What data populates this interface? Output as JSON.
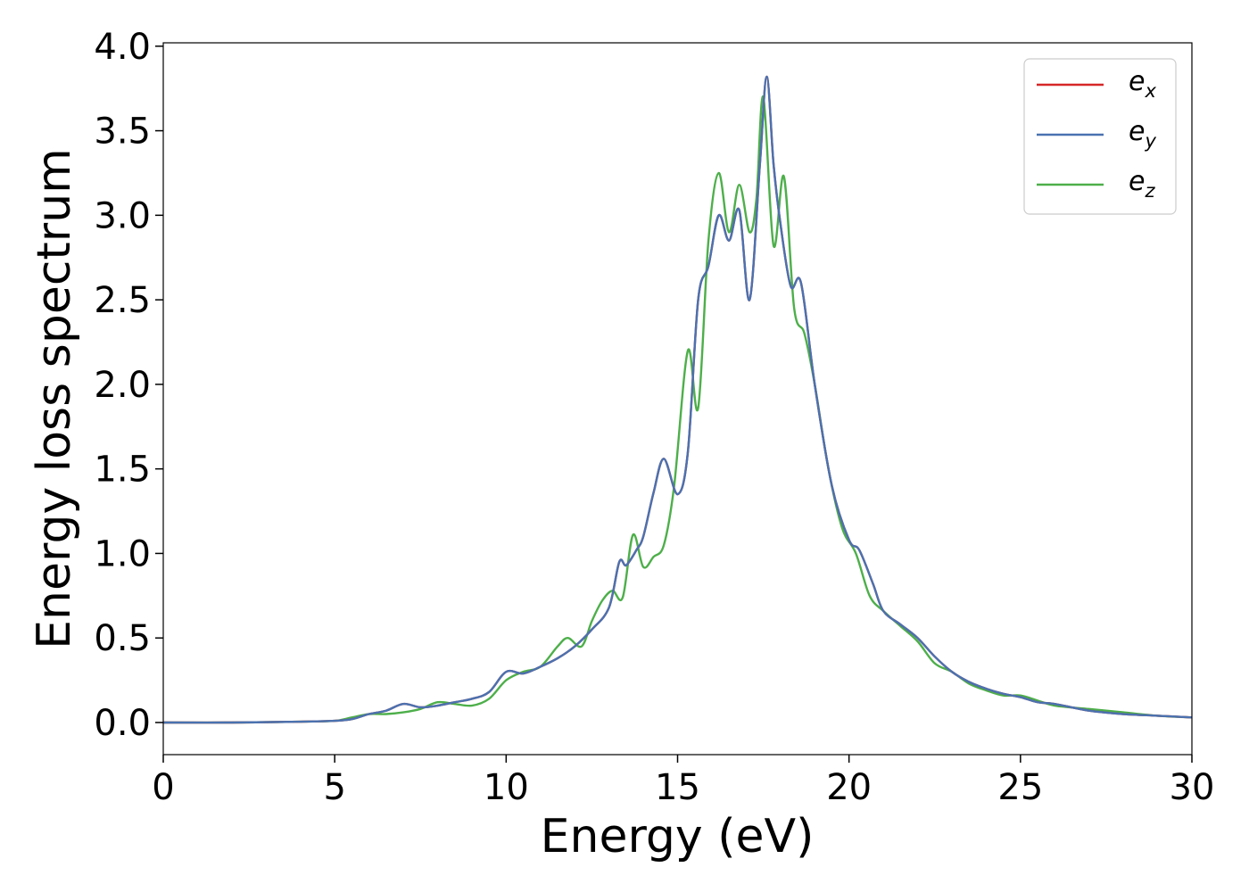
{
  "chart_data": {
    "type": "line",
    "title": "",
    "xlabel": "Energy (eV)",
    "ylabel": "Energy loss spectrum",
    "xlim": [
      0,
      30
    ],
    "ylim": [
      -0.19,
      4.02
    ],
    "xticks": [
      0,
      5,
      10,
      15,
      20,
      25,
      30
    ],
    "xtick_labels": [
      "0",
      "5",
      "10",
      "15",
      "20",
      "25",
      "30"
    ],
    "yticks": [
      0.0,
      0.5,
      1.0,
      1.5,
      2.0,
      2.5,
      3.0,
      3.5,
      4.0
    ],
    "ytick_labels": [
      "0.0",
      "0.5",
      "1.0",
      "1.5",
      "2.0",
      "2.5",
      "3.0",
      "3.5",
      "4.0"
    ],
    "grid": false,
    "legend_position": "top-right",
    "series": [
      {
        "name": "e",
        "subscript": "x",
        "color": "#d62728",
        "x": [
          0,
          2,
          4,
          5,
          5.5,
          6,
          6.5,
          7,
          7.5,
          8,
          8.5,
          9,
          9.5,
          10,
          10.5,
          11,
          11.5,
          12,
          12.5,
          13,
          13.3,
          13.5,
          13.8,
          14,
          14.3,
          14.6,
          15,
          15.3,
          15.6,
          15.9,
          16.2,
          16.5,
          16.8,
          17.1,
          17.4,
          17.6,
          17.8,
          18.0,
          18.3,
          18.6,
          19.0,
          19.5,
          20.0,
          20.3,
          20.7,
          21.0,
          21.5,
          22.0,
          22.5,
          23.0,
          23.5,
          24.0,
          24.5,
          25.0,
          25.5,
          26.0,
          27.0,
          28.0,
          29.0,
          30.0
        ],
        "y": [
          0.0,
          0.0,
          0.005,
          0.01,
          0.02,
          0.05,
          0.07,
          0.11,
          0.09,
          0.1,
          0.12,
          0.14,
          0.18,
          0.3,
          0.29,
          0.33,
          0.38,
          0.45,
          0.55,
          0.68,
          0.95,
          0.93,
          1.02,
          1.1,
          1.36,
          1.56,
          1.35,
          1.6,
          2.5,
          2.7,
          3.0,
          2.85,
          3.03,
          2.5,
          3.3,
          3.82,
          3.3,
          2.95,
          2.58,
          2.6,
          2.0,
          1.4,
          1.08,
          1.02,
          0.82,
          0.66,
          0.58,
          0.5,
          0.39,
          0.3,
          0.24,
          0.2,
          0.17,
          0.15,
          0.12,
          0.11,
          0.07,
          0.05,
          0.04,
          0.03
        ]
      },
      {
        "name": "e",
        "subscript": "y",
        "color": "#4a72b0",
        "x": [
          0,
          2,
          4,
          5,
          5.5,
          6,
          6.5,
          7,
          7.5,
          8,
          8.5,
          9,
          9.5,
          10,
          10.5,
          11,
          11.5,
          12,
          12.5,
          13,
          13.3,
          13.5,
          13.8,
          14,
          14.3,
          14.6,
          15,
          15.3,
          15.6,
          15.9,
          16.2,
          16.5,
          16.8,
          17.1,
          17.4,
          17.6,
          17.8,
          18.0,
          18.3,
          18.6,
          19.0,
          19.5,
          20.0,
          20.3,
          20.7,
          21.0,
          21.5,
          22.0,
          22.5,
          23.0,
          23.5,
          24.0,
          24.5,
          25.0,
          25.5,
          26.0,
          27.0,
          28.0,
          29.0,
          30.0
        ],
        "y": [
          0.0,
          0.0,
          0.005,
          0.01,
          0.02,
          0.05,
          0.07,
          0.11,
          0.09,
          0.1,
          0.12,
          0.14,
          0.18,
          0.3,
          0.29,
          0.33,
          0.38,
          0.45,
          0.55,
          0.68,
          0.95,
          0.93,
          1.02,
          1.1,
          1.36,
          1.56,
          1.35,
          1.6,
          2.5,
          2.7,
          3.0,
          2.85,
          3.03,
          2.5,
          3.3,
          3.82,
          3.3,
          2.95,
          2.58,
          2.6,
          2.0,
          1.4,
          1.08,
          1.02,
          0.82,
          0.66,
          0.58,
          0.5,
          0.39,
          0.3,
          0.24,
          0.2,
          0.17,
          0.15,
          0.12,
          0.11,
          0.07,
          0.05,
          0.04,
          0.03
        ]
      },
      {
        "name": "e",
        "subscript": "z",
        "color": "#4daf4a",
        "x": [
          0,
          2,
          4,
          5,
          5.5,
          6,
          6.5,
          7,
          7.5,
          8,
          8.5,
          9,
          9.5,
          10,
          10.5,
          11,
          11.5,
          11.8,
          12.2,
          12.5,
          12.8,
          13.1,
          13.4,
          13.7,
          14.0,
          14.3,
          14.6,
          14.9,
          15.3,
          15.6,
          15.9,
          16.2,
          16.5,
          16.8,
          17.1,
          17.3,
          17.5,
          17.8,
          18.1,
          18.4,
          18.7,
          19.0,
          19.4,
          19.8,
          20.2,
          20.6,
          21.0,
          21.5,
          22.0,
          22.5,
          23.0,
          23.5,
          24.0,
          24.5,
          25.0,
          25.5,
          26.0,
          27.0,
          28.0,
          29.0,
          30.0
        ],
        "y": [
          0.0,
          0.0,
          0.005,
          0.01,
          0.03,
          0.05,
          0.05,
          0.06,
          0.08,
          0.12,
          0.11,
          0.1,
          0.14,
          0.25,
          0.3,
          0.33,
          0.45,
          0.5,
          0.45,
          0.6,
          0.72,
          0.78,
          0.74,
          1.11,
          0.92,
          0.98,
          1.05,
          1.4,
          2.2,
          1.86,
          2.85,
          3.25,
          2.9,
          3.18,
          2.9,
          3.1,
          3.7,
          2.82,
          3.23,
          2.45,
          2.3,
          2.0,
          1.5,
          1.15,
          1.0,
          0.75,
          0.66,
          0.57,
          0.48,
          0.35,
          0.3,
          0.23,
          0.19,
          0.16,
          0.16,
          0.13,
          0.1,
          0.08,
          0.06,
          0.04,
          0.03
        ]
      }
    ]
  }
}
